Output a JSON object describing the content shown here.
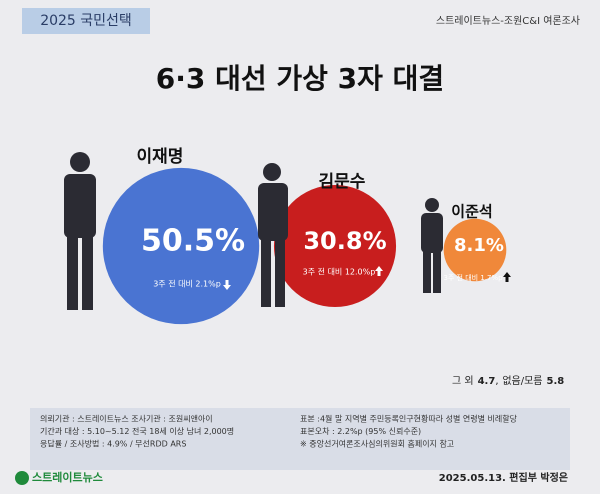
{
  "chart_data": {
    "type": "bubble",
    "badge": "2025 국민선택",
    "source_top": "스트레이트뉴스-조원C&I 여론조사",
    "title": "6·3 대선 가상 3자 대결",
    "categories": [
      "이재명",
      "김문수",
      "이준석"
    ],
    "values": [
      50.5,
      30.8,
      8.1
    ],
    "value_labels": [
      "50.5%",
      "30.8%",
      "8.1%"
    ],
    "colors": [
      "#4a74d2",
      "#c81e1e",
      "#f0883a"
    ],
    "changes": [
      "3주 전 대비 2.1%p",
      "3주 전 대비 12.0%p",
      "3주 전 대비 1.7%p"
    ],
    "change_directions": [
      "down",
      "up",
      "up"
    ],
    "others_label": "그 외",
    "others": 4.7,
    "none_label": "없음/모름",
    "none": 5.8,
    "notes_left": [
      "의뢰기관 : 스트레이트뉴스       조사기관 : 조원씨앤아이",
      "기간과 대상 : 5.10~5.12 전국 18세 이상 남녀 2,000명",
      "응답률 / 조사방법 : 4.9% / 무선RDD ARS"
    ],
    "notes_right": [
      "표본 :4월 말 지역별 주민등록인구현황따라 성별 연령별 비례할당",
      "표본오차 : 2.2%p (95% 신뢰수준)",
      "※ 중앙선거여론조사심의위원회 홈페이지 참고"
    ],
    "logo": "스트레이트뉴스",
    "credit": "2025.05.13. 편집부 박정은"
  }
}
